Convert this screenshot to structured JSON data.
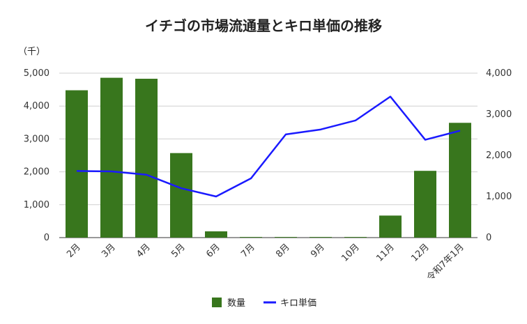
{
  "chart_data": {
    "type": "bar+line",
    "title": "イチゴの市場流通量とキロ単価の推移",
    "unit_label": "（千）",
    "categories": [
      "2月",
      "3月",
      "4月",
      "5月",
      "6月",
      "7月",
      "8月",
      "9月",
      "10月",
      "11月",
      "12月",
      "令和7年1月"
    ],
    "series": [
      {
        "name": "数量",
        "type": "bar",
        "axis": "left",
        "color": "#38761d",
        "values": [
          4480,
          4860,
          4830,
          2570,
          190,
          20,
          20,
          20,
          20,
          670,
          2030,
          3490
        ]
      },
      {
        "name": "キロ単価",
        "type": "line",
        "axis": "right",
        "color": "#1a1aff",
        "values": [
          1620,
          1610,
          1530,
          1200,
          1000,
          1440,
          2510,
          2630,
          2850,
          3430,
          2380,
          2600
        ]
      }
    ],
    "y_left": {
      "min": 0,
      "max": 5000,
      "ticks": [
        "0",
        "1,000",
        "2,000",
        "3,000",
        "4,000",
        "5,000"
      ]
    },
    "y_right": {
      "min": 0,
      "max": 4000,
      "ticks": [
        "0",
        "1,000",
        "2,000",
        "3,000",
        "4,000"
      ]
    },
    "grid": true,
    "legend_position": "bottom"
  }
}
